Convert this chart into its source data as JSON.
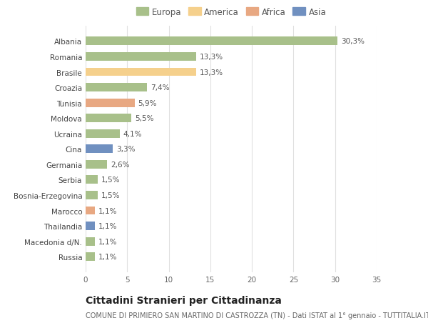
{
  "countries": [
    "Albania",
    "Romania",
    "Brasile",
    "Croazia",
    "Tunisia",
    "Moldova",
    "Ucraina",
    "Cina",
    "Germania",
    "Serbia",
    "Bosnia-Erzegovina",
    "Marocco",
    "Thailandia",
    "Macedonia d/N.",
    "Russia"
  ],
  "values": [
    30.3,
    13.3,
    13.3,
    7.4,
    5.9,
    5.5,
    4.1,
    3.3,
    2.6,
    1.5,
    1.5,
    1.1,
    1.1,
    1.1,
    1.1
  ],
  "labels": [
    "30,3%",
    "13,3%",
    "13,3%",
    "7,4%",
    "5,9%",
    "5,5%",
    "4,1%",
    "3,3%",
    "2,6%",
    "1,5%",
    "1,5%",
    "1,1%",
    "1,1%",
    "1,1%",
    "1,1%"
  ],
  "categories": [
    "Europa",
    "America",
    "Africa",
    "Asia"
  ],
  "continent": [
    "Europa",
    "Europa",
    "America",
    "Europa",
    "Africa",
    "Europa",
    "Europa",
    "Asia",
    "Europa",
    "Europa",
    "Europa",
    "Africa",
    "Asia",
    "Europa",
    "Europa"
  ],
  "colors": {
    "Europa": "#a8c08a",
    "America": "#f5d08c",
    "Africa": "#e8a882",
    "Asia": "#7090c0"
  },
  "background_color": "#ffffff",
  "plot_bg_color": "#ffffff",
  "grid_color": "#e0e0e0",
  "xlim": [
    0,
    35
  ],
  "xticks": [
    0,
    5,
    10,
    15,
    20,
    25,
    30,
    35
  ],
  "title": "Cittadini Stranieri per Cittadinanza",
  "subtitle": "COMUNE DI PRIMIERO SAN MARTINO DI CASTROZZA (TN) - Dati ISTAT al 1° gennaio - TUTTITALIA.IT",
  "label_fontsize": 7.5,
  "tick_fontsize": 7.5,
  "ytick_fontsize": 7.5,
  "title_fontsize": 10,
  "subtitle_fontsize": 7,
  "legend_fontsize": 8.5,
  "bar_height": 0.55
}
